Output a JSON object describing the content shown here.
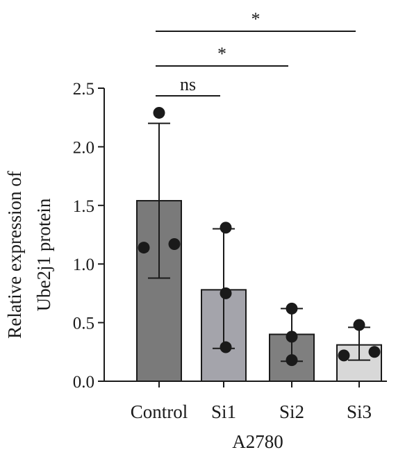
{
  "chart_data": {
    "type": "bar",
    "xlabel": "A2780",
    "ylabel_lines": [
      "Relative expression of",
      "Ube2j1 protein"
    ],
    "ylim": [
      0,
      2.5
    ],
    "yticks": [
      "0.0",
      "0.5",
      "1.0",
      "1.5",
      "2.0",
      "2.5"
    ],
    "categories": [
      "Control",
      "Si1",
      "Si2",
      "Si3"
    ],
    "values": [
      1.54,
      0.78,
      0.4,
      0.31
    ],
    "error_low": [
      0.88,
      0.28,
      0.17,
      0.18
    ],
    "error_high": [
      2.2,
      1.3,
      0.62,
      0.46
    ],
    "points": [
      [
        2.29,
        1.14,
        1.17
      ],
      [
        1.31,
        0.75,
        0.29
      ],
      [
        0.62,
        0.38,
        0.18
      ],
      [
        0.48,
        0.22,
        0.25
      ]
    ],
    "bar_colors": [
      "#7a7a7a",
      "#a4a4ab",
      "#7f7f7f",
      "#d8d8d8"
    ],
    "significance": [
      {
        "label": "ns",
        "from": "Control",
        "to": "Si1"
      },
      {
        "label": "*",
        "from": "Control",
        "to": "Si2"
      },
      {
        "label": "*",
        "from": "Control",
        "to": "Si3"
      }
    ],
    "grid": false,
    "legend": "none"
  }
}
